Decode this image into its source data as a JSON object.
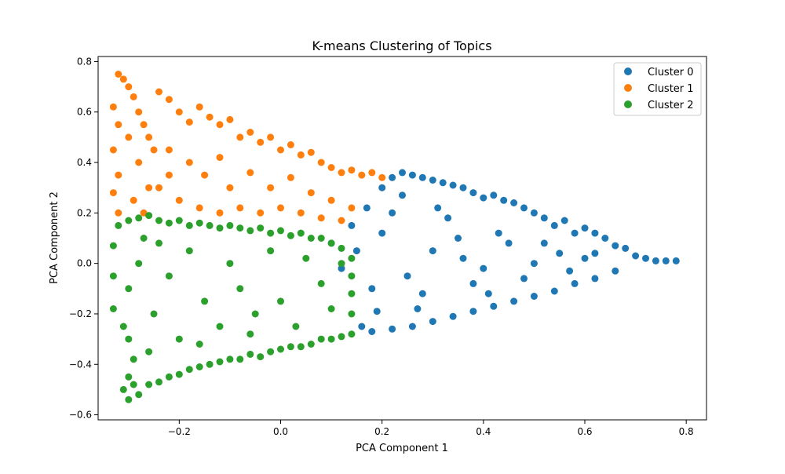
{
  "chart_data": {
    "type": "scatter",
    "title": "K-means Clustering of Topics",
    "xlabel": "PCA Component 1",
    "ylabel": "PCA Component 2",
    "xlim": [
      -0.36,
      0.84
    ],
    "ylim": [
      -0.62,
      0.82
    ],
    "xticks": [
      -0.2,
      0.0,
      0.2,
      0.4,
      0.6,
      0.8
    ],
    "xtick_labels": [
      "−0.2",
      "0.0",
      "0.2",
      "0.4",
      "0.6",
      "0.8"
    ],
    "yticks": [
      -0.6,
      -0.4,
      -0.2,
      0.0,
      0.2,
      0.4,
      0.6,
      0.8
    ],
    "ytick_labels": [
      "−0.6",
      "−0.4",
      "−0.2",
      "0.0",
      "0.2",
      "0.4",
      "0.6",
      "0.8"
    ],
    "grid": false,
    "legend_position": "top-right",
    "series": [
      {
        "name": "Cluster 0",
        "color": "#1f77b4",
        "points": [
          [
            0.78,
            0.01
          ],
          [
            0.76,
            0.01
          ],
          [
            0.74,
            0.01
          ],
          [
            0.72,
            0.02
          ],
          [
            0.7,
            0.03
          ],
          [
            0.68,
            0.06
          ],
          [
            0.66,
            0.07
          ],
          [
            0.64,
            0.1
          ],
          [
            0.62,
            0.12
          ],
          [
            0.6,
            0.14
          ],
          [
            0.58,
            0.12
          ],
          [
            0.56,
            0.17
          ],
          [
            0.54,
            0.15
          ],
          [
            0.52,
            0.18
          ],
          [
            0.5,
            0.2
          ],
          [
            0.48,
            0.22
          ],
          [
            0.46,
            0.24
          ],
          [
            0.44,
            0.25
          ],
          [
            0.42,
            0.27
          ],
          [
            0.4,
            0.26
          ],
          [
            0.38,
            0.28
          ],
          [
            0.36,
            0.3
          ],
          [
            0.34,
            0.31
          ],
          [
            0.32,
            0.32
          ],
          [
            0.3,
            0.33
          ],
          [
            0.28,
            0.34
          ],
          [
            0.26,
            0.35
          ],
          [
            0.24,
            0.36
          ],
          [
            0.22,
            0.34
          ],
          [
            0.2,
            0.3
          ],
          [
            0.66,
            -0.03
          ],
          [
            0.62,
            -0.06
          ],
          [
            0.58,
            -0.08
          ],
          [
            0.54,
            -0.11
          ],
          [
            0.5,
            -0.13
          ],
          [
            0.46,
            -0.15
          ],
          [
            0.42,
            -0.17
          ],
          [
            0.38,
            -0.19
          ],
          [
            0.34,
            -0.21
          ],
          [
            0.3,
            -0.23
          ],
          [
            0.26,
            -0.25
          ],
          [
            0.22,
            -0.26
          ],
          [
            0.18,
            -0.27
          ],
          [
            0.16,
            -0.25
          ],
          [
            0.6,
            0.02
          ],
          [
            0.55,
            0.04
          ],
          [
            0.5,
            0.0
          ],
          [
            0.45,
            0.08
          ],
          [
            0.4,
            -0.02
          ],
          [
            0.35,
            0.1
          ],
          [
            0.3,
            0.05
          ],
          [
            0.25,
            -0.05
          ],
          [
            0.2,
            0.12
          ],
          [
            0.18,
            -0.1
          ],
          [
            0.22,
            0.2
          ],
          [
            0.28,
            -0.12
          ],
          [
            0.33,
            0.18
          ],
          [
            0.38,
            -0.08
          ],
          [
            0.43,
            0.12
          ],
          [
            0.48,
            -0.06
          ],
          [
            0.52,
            0.08
          ],
          [
            0.57,
            -0.03
          ],
          [
            0.62,
            0.04
          ],
          [
            0.15,
            0.05
          ],
          [
            0.12,
            -0.02
          ],
          [
            0.14,
            0.15
          ],
          [
            0.17,
            0.22
          ],
          [
            0.24,
            0.27
          ],
          [
            0.31,
            0.22
          ],
          [
            0.36,
            0.02
          ],
          [
            0.41,
            -0.12
          ],
          [
            0.27,
            -0.18
          ],
          [
            0.19,
            -0.19
          ],
          [
            0.1,
            0.08
          ]
        ]
      },
      {
        "name": "Cluster 1",
        "color": "#ff7f0e",
        "points": [
          [
            -0.32,
            0.75
          ],
          [
            -0.31,
            0.73
          ],
          [
            -0.3,
            0.7
          ],
          [
            -0.29,
            0.66
          ],
          [
            -0.28,
            0.6
          ],
          [
            -0.27,
            0.55
          ],
          [
            -0.26,
            0.5
          ],
          [
            -0.25,
            0.45
          ],
          [
            -0.33,
            0.62
          ],
          [
            -0.32,
            0.55
          ],
          [
            -0.33,
            0.45
          ],
          [
            -0.32,
            0.35
          ],
          [
            -0.33,
            0.28
          ],
          [
            -0.32,
            0.2
          ],
          [
            -0.3,
            0.5
          ],
          [
            -0.28,
            0.4
          ],
          [
            -0.26,
            0.3
          ],
          [
            -0.29,
            0.25
          ],
          [
            -0.27,
            0.2
          ],
          [
            -0.24,
            0.68
          ],
          [
            -0.22,
            0.65
          ],
          [
            -0.2,
            0.6
          ],
          [
            -0.18,
            0.56
          ],
          [
            -0.16,
            0.62
          ],
          [
            -0.14,
            0.58
          ],
          [
            -0.12,
            0.55
          ],
          [
            -0.1,
            0.57
          ],
          [
            -0.08,
            0.5
          ],
          [
            -0.06,
            0.52
          ],
          [
            -0.04,
            0.48
          ],
          [
            -0.02,
            0.5
          ],
          [
            0.0,
            0.45
          ],
          [
            0.02,
            0.47
          ],
          [
            0.04,
            0.43
          ],
          [
            0.06,
            0.44
          ],
          [
            0.08,
            0.4
          ],
          [
            0.1,
            0.38
          ],
          [
            0.12,
            0.36
          ],
          [
            0.14,
            0.37
          ],
          [
            0.16,
            0.35
          ],
          [
            0.18,
            0.36
          ],
          [
            0.2,
            0.34
          ],
          [
            -0.22,
            0.45
          ],
          [
            -0.18,
            0.4
          ],
          [
            -0.15,
            0.35
          ],
          [
            -0.12,
            0.42
          ],
          [
            -0.1,
            0.3
          ],
          [
            -0.06,
            0.36
          ],
          [
            -0.02,
            0.3
          ],
          [
            0.02,
            0.34
          ],
          [
            0.06,
            0.28
          ],
          [
            0.1,
            0.25
          ],
          [
            0.14,
            0.22
          ],
          [
            -0.2,
            0.25
          ],
          [
            -0.16,
            0.22
          ],
          [
            -0.12,
            0.2
          ],
          [
            -0.08,
            0.22
          ],
          [
            -0.04,
            0.2
          ],
          [
            0.0,
            0.22
          ],
          [
            0.04,
            0.2
          ],
          [
            0.08,
            0.18
          ],
          [
            0.12,
            0.17
          ],
          [
            -0.24,
            0.3
          ],
          [
            -0.22,
            0.35
          ]
        ]
      },
      {
        "name": "Cluster 2",
        "color": "#2ca02c",
        "points": [
          [
            -0.3,
            -0.54
          ],
          [
            -0.31,
            -0.5
          ],
          [
            -0.3,
            -0.45
          ],
          [
            -0.29,
            -0.48
          ],
          [
            -0.28,
            -0.52
          ],
          [
            -0.26,
            -0.48
          ],
          [
            -0.24,
            -0.47
          ],
          [
            -0.22,
            -0.45
          ],
          [
            -0.2,
            -0.44
          ],
          [
            -0.18,
            -0.42
          ],
          [
            -0.16,
            -0.41
          ],
          [
            -0.14,
            -0.4
          ],
          [
            -0.12,
            -0.39
          ],
          [
            -0.1,
            -0.38
          ],
          [
            -0.08,
            -0.38
          ],
          [
            -0.06,
            -0.36
          ],
          [
            -0.04,
            -0.37
          ],
          [
            -0.02,
            -0.35
          ],
          [
            0.0,
            -0.34
          ],
          [
            0.02,
            -0.33
          ],
          [
            0.04,
            -0.33
          ],
          [
            0.06,
            -0.32
          ],
          [
            0.08,
            -0.3
          ],
          [
            0.1,
            -0.3
          ],
          [
            0.12,
            -0.29
          ],
          [
            0.14,
            -0.28
          ],
          [
            -0.33,
            -0.18
          ],
          [
            -0.33,
            -0.05
          ],
          [
            -0.33,
            0.07
          ],
          [
            -0.32,
            0.15
          ],
          [
            -0.3,
            0.17
          ],
          [
            -0.28,
            0.18
          ],
          [
            -0.26,
            0.19
          ],
          [
            -0.24,
            0.17
          ],
          [
            -0.22,
            0.16
          ],
          [
            -0.2,
            0.17
          ],
          [
            -0.18,
            0.15
          ],
          [
            -0.16,
            0.16
          ],
          [
            -0.14,
            0.15
          ],
          [
            -0.12,
            0.14
          ],
          [
            -0.1,
            0.15
          ],
          [
            -0.08,
            0.14
          ],
          [
            -0.06,
            0.13
          ],
          [
            -0.04,
            0.14
          ],
          [
            -0.02,
            0.12
          ],
          [
            0.0,
            0.13
          ],
          [
            0.02,
            0.11
          ],
          [
            0.04,
            0.12
          ],
          [
            0.06,
            0.1
          ],
          [
            0.08,
            0.1
          ],
          [
            0.1,
            0.08
          ],
          [
            0.12,
            0.06
          ],
          [
            0.14,
            0.02
          ],
          [
            0.14,
            -0.05
          ],
          [
            0.14,
            -0.12
          ],
          [
            0.14,
            -0.2
          ],
          [
            -0.3,
            -0.3
          ],
          [
            -0.29,
            -0.38
          ],
          [
            -0.31,
            -0.25
          ],
          [
            -0.28,
            0.0
          ],
          [
            -0.3,
            -0.1
          ],
          [
            -0.25,
            -0.2
          ],
          [
            -0.22,
            -0.05
          ],
          [
            -0.2,
            -0.3
          ],
          [
            -0.18,
            0.05
          ],
          [
            -0.15,
            -0.15
          ],
          [
            -0.12,
            -0.25
          ],
          [
            -0.1,
            0.0
          ],
          [
            -0.08,
            -0.1
          ],
          [
            -0.05,
            -0.2
          ],
          [
            -0.02,
            0.05
          ],
          [
            0.0,
            -0.15
          ],
          [
            0.03,
            -0.25
          ],
          [
            0.05,
            0.02
          ],
          [
            0.08,
            -0.08
          ],
          [
            0.1,
            -0.18
          ],
          [
            0.12,
            0.0
          ],
          [
            -0.26,
            -0.35
          ],
          [
            -0.27,
            0.1
          ],
          [
            -0.24,
            0.08
          ],
          [
            -0.16,
            -0.32
          ],
          [
            -0.06,
            -0.28
          ]
        ]
      }
    ]
  }
}
